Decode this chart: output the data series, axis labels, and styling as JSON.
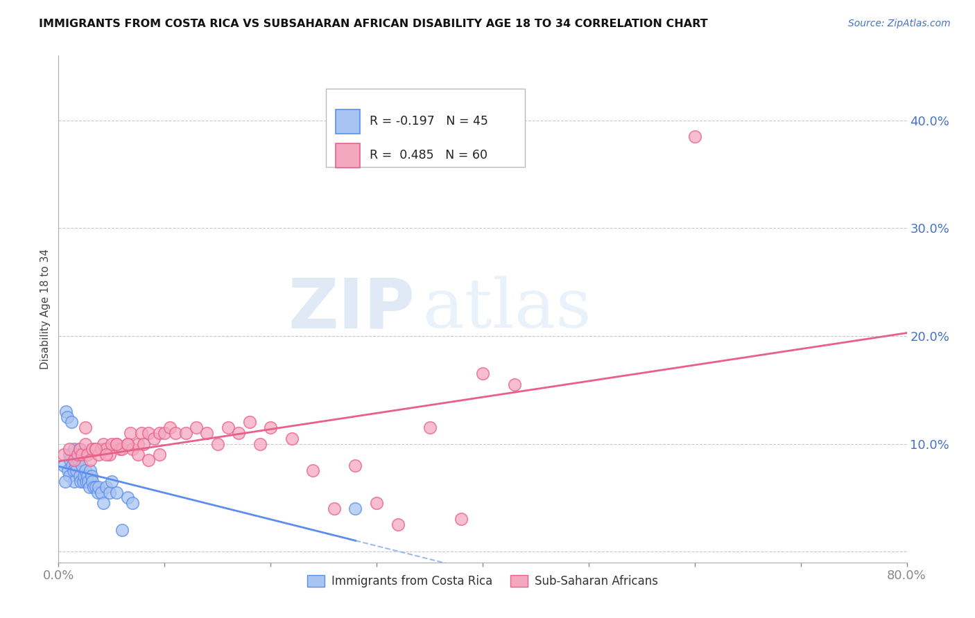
{
  "title": "IMMIGRANTS FROM COSTA RICA VS SUBSAHARAN AFRICAN DISABILITY AGE 18 TO 34 CORRELATION CHART",
  "source": "Source: ZipAtlas.com",
  "ylabel": "Disability Age 18 to 34",
  "xlim": [
    0.0,
    0.8
  ],
  "ylim": [
    -0.01,
    0.46
  ],
  "yticks": [
    0.0,
    0.1,
    0.2,
    0.3,
    0.4
  ],
  "ytick_labels": [
    "",
    "10.0%",
    "20.0%",
    "30.0%",
    "40.0%"
  ],
  "xticks": [
    0.0,
    0.1,
    0.2,
    0.3,
    0.4,
    0.5,
    0.6,
    0.7,
    0.8
  ],
  "xtick_labels": [
    "0.0%",
    "",
    "",
    "",
    "",
    "",
    "",
    "",
    "80.0%"
  ],
  "legend_r1": "R = -0.197",
  "legend_n1": "N = 45",
  "legend_r2": "R =  0.485",
  "legend_n2": "N = 60",
  "label1": "Immigrants from Costa Rica",
  "label2": "Sub-Saharan Africans",
  "color1": "#A8C4F0",
  "color2": "#F4A8C0",
  "line_color1": "#5B8DEF",
  "line_color2": "#E8608A",
  "axis_color": "#4472C4",
  "watermark_zip": "ZIP",
  "watermark_atlas": "atlas",
  "costa_rica_x": [
    0.005,
    0.007,
    0.008,
    0.009,
    0.01,
    0.01,
    0.011,
    0.012,
    0.013,
    0.014,
    0.015,
    0.015,
    0.016,
    0.017,
    0.018,
    0.019,
    0.02,
    0.02,
    0.021,
    0.022,
    0.023,
    0.024,
    0.025,
    0.026,
    0.027,
    0.028,
    0.029,
    0.03,
    0.031,
    0.032,
    0.033,
    0.035,
    0.037,
    0.038,
    0.04,
    0.042,
    0.045,
    0.048,
    0.05,
    0.055,
    0.06,
    0.065,
    0.07,
    0.28,
    0.006
  ],
  "costa_rica_y": [
    0.08,
    0.13,
    0.125,
    0.075,
    0.09,
    0.07,
    0.085,
    0.12,
    0.08,
    0.075,
    0.065,
    0.095,
    0.08,
    0.075,
    0.09,
    0.085,
    0.095,
    0.07,
    0.065,
    0.08,
    0.065,
    0.07,
    0.075,
    0.065,
    0.07,
    0.065,
    0.06,
    0.075,
    0.07,
    0.065,
    0.06,
    0.06,
    0.055,
    0.06,
    0.055,
    0.045,
    0.06,
    0.055,
    0.065,
    0.055,
    0.02,
    0.05,
    0.045,
    0.04,
    0.065
  ],
  "subsaharan_x": [
    0.005,
    0.01,
    0.015,
    0.018,
    0.02,
    0.022,
    0.025,
    0.027,
    0.03,
    0.032,
    0.035,
    0.038,
    0.04,
    0.042,
    0.045,
    0.048,
    0.05,
    0.055,
    0.058,
    0.06,
    0.065,
    0.068,
    0.07,
    0.075,
    0.078,
    0.08,
    0.085,
    0.09,
    0.095,
    0.1,
    0.105,
    0.11,
    0.12,
    0.13,
    0.14,
    0.15,
    0.16,
    0.17,
    0.18,
    0.19,
    0.2,
    0.22,
    0.24,
    0.26,
    0.28,
    0.3,
    0.32,
    0.35,
    0.38,
    0.4,
    0.025,
    0.035,
    0.045,
    0.055,
    0.065,
    0.075,
    0.085,
    0.095,
    0.43,
    0.6
  ],
  "subsaharan_y": [
    0.09,
    0.095,
    0.085,
    0.09,
    0.095,
    0.09,
    0.1,
    0.09,
    0.085,
    0.095,
    0.095,
    0.09,
    0.095,
    0.1,
    0.095,
    0.09,
    0.1,
    0.1,
    0.095,
    0.095,
    0.1,
    0.11,
    0.095,
    0.1,
    0.11,
    0.1,
    0.11,
    0.105,
    0.11,
    0.11,
    0.115,
    0.11,
    0.11,
    0.115,
    0.11,
    0.1,
    0.115,
    0.11,
    0.12,
    0.1,
    0.115,
    0.105,
    0.075,
    0.04,
    0.08,
    0.045,
    0.025,
    0.115,
    0.03,
    0.165,
    0.115,
    0.095,
    0.09,
    0.1,
    0.1,
    0.09,
    0.085,
    0.09,
    0.155,
    0.385
  ]
}
